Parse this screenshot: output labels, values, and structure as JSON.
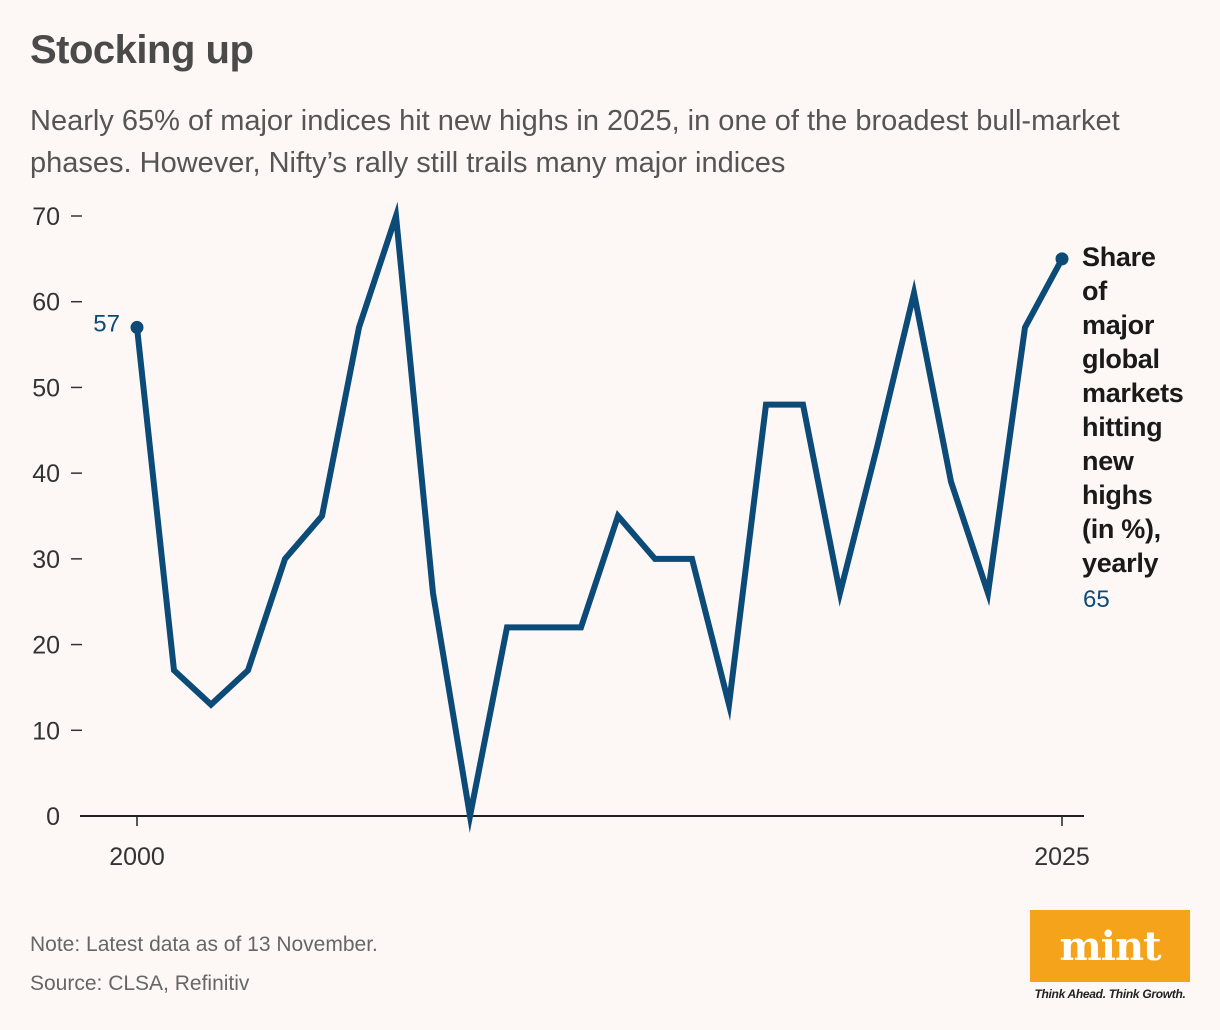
{
  "header": {
    "title": "Stocking up",
    "subtitle": "Nearly 65% of major indices hit new highs in 2025, in one of the broadest bull-market phases. However, Nifty’s rally still trails many major indices"
  },
  "footer": {
    "note": "Note: Latest data as of 13 November.",
    "source": "Source: CLSA, Refinitiv"
  },
  "brand": {
    "logo_text": "mint",
    "tagline": "Think Ahead. Think Growth.",
    "logo_color": "#f5a31a"
  },
  "chart_data": {
    "type": "line",
    "title": "Stocking up",
    "xlabel": "",
    "ylabel": "",
    "x": [
      2000,
      2001,
      2002,
      2003,
      2004,
      2005,
      2006,
      2007,
      2008,
      2009,
      2010,
      2011,
      2012,
      2013,
      2014,
      2015,
      2016,
      2017,
      2018,
      2019,
      2020,
      2021,
      2022,
      2023,
      2024,
      2025
    ],
    "x_tick_labels": [
      "2000",
      "2025"
    ],
    "ylim": [
      0,
      70
    ],
    "y_ticks": [
      0,
      10,
      20,
      30,
      40,
      50,
      60,
      70
    ],
    "grid": false,
    "series": [
      {
        "name": "Share of major global markets hitting new highs (in %), yearly",
        "color": "#0c4a78",
        "values": [
          57,
          17,
          13,
          17,
          30,
          35,
          57,
          70,
          26,
          0,
          22,
          22,
          22,
          35,
          30,
          30,
          13,
          48,
          48,
          26,
          43,
          61,
          39,
          26,
          57,
          65
        ]
      }
    ],
    "annotations": {
      "first_value": "57",
      "last_value": "65"
    },
    "label_lines": [
      "Share",
      "of",
      "major",
      "global",
      "markets",
      "hitting",
      "new",
      "highs",
      "(in %),",
      "yearly"
    ]
  }
}
